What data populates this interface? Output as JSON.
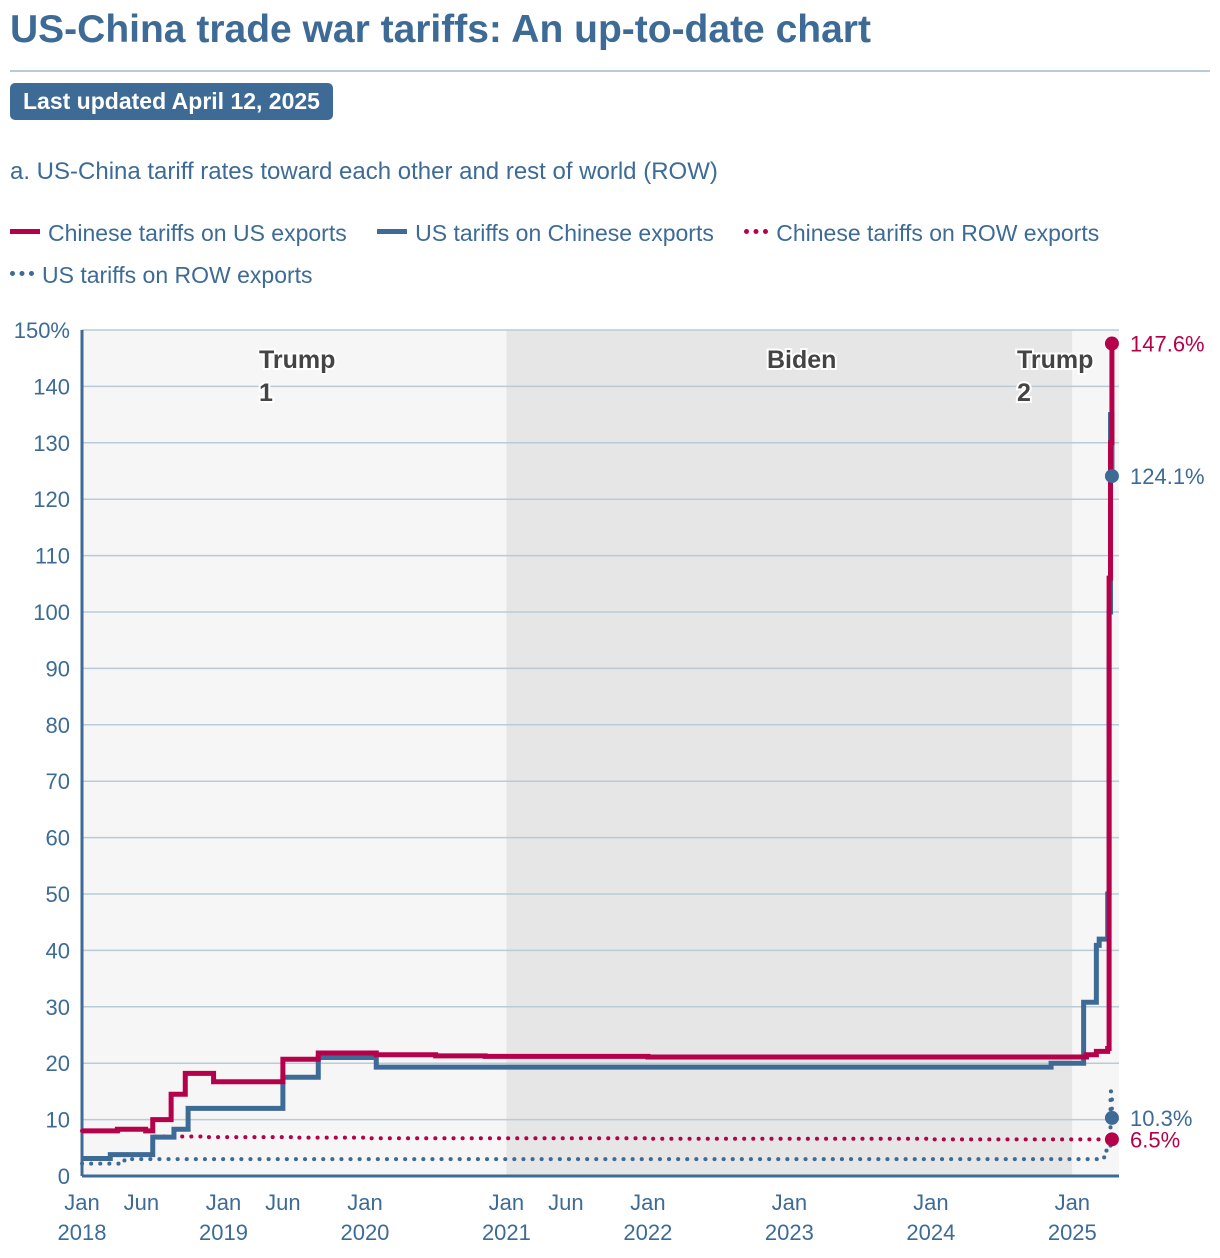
{
  "header": {
    "title": "US-China trade war tariffs: An up-to-date chart",
    "updated": "Last updated April 12, 2025",
    "subtitle": "a. US-China tariff rates toward each other and rest of world (ROW)"
  },
  "legend": {
    "items": [
      {
        "label": "Chinese tariffs on US exports",
        "style": "solid",
        "color": "#b5004a"
      },
      {
        "label": "US tariffs on Chinese exports",
        "style": "solid",
        "color": "#3d6b96"
      },
      {
        "label": "Chinese tariffs on ROW exports",
        "style": "dotted",
        "color": "#b5004a"
      },
      {
        "label": "US tariffs on ROW exports",
        "style": "dotted",
        "color": "#3d6b96"
      }
    ]
  },
  "colors": {
    "red": "#b5004a",
    "blue": "#3d6b96",
    "shade_light": "#f6f6f6",
    "shade_dark": "#e6e6e6"
  },
  "chart_data": {
    "type": "line",
    "title": "a. US-China tariff rates toward each other and rest of world (ROW)",
    "xlabel": "",
    "ylabel": "",
    "xlim": [
      2018.0,
      2025.33
    ],
    "ylim": [
      0,
      150
    ],
    "y_ticks": [
      0,
      10,
      20,
      30,
      40,
      50,
      60,
      70,
      80,
      90,
      100,
      110,
      120,
      130,
      140,
      150
    ],
    "y_tick_labels": [
      "0",
      "10",
      "20",
      "30",
      "40",
      "50",
      "60",
      "70",
      "80",
      "90",
      "100",
      "110",
      "120",
      "130",
      "140",
      "150%"
    ],
    "x_ticks": [
      {
        "x": 2018.0,
        "line1": "Jan",
        "line2": "2018"
      },
      {
        "x": 2018.42,
        "line1": "Jun",
        "line2": ""
      },
      {
        "x": 2019.0,
        "line1": "Jan",
        "line2": "2019"
      },
      {
        "x": 2019.42,
        "line1": "Jun",
        "line2": ""
      },
      {
        "x": 2020.0,
        "line1": "Jan",
        "line2": "2020"
      },
      {
        "x": 2021.0,
        "line1": "Jan",
        "line2": "2021"
      },
      {
        "x": 2021.42,
        "line1": "Jun",
        "line2": ""
      },
      {
        "x": 2022.0,
        "line1": "Jan",
        "line2": "2022"
      },
      {
        "x": 2023.0,
        "line1": "Jan",
        "line2": "2023"
      },
      {
        "x": 2024.0,
        "line1": "Jan",
        "line2": "2024"
      },
      {
        "x": 2025.0,
        "line1": "Jan",
        "line2": "2025"
      }
    ],
    "periods": [
      {
        "label": "Trump 1",
        "line1": "Trump",
        "line2": "1",
        "start": 2018.0,
        "end": 2021.0,
        "shade": "light"
      },
      {
        "label": "Biden",
        "line1": "Biden",
        "line2": "",
        "start": 2021.0,
        "end": 2025.0,
        "shade": "dark"
      },
      {
        "label": "Trump 2",
        "line1": "Trump",
        "line2": "2",
        "start": 2025.0,
        "end": 2025.33,
        "shade": "light"
      }
    ],
    "series": [
      {
        "name": "Chinese tariffs on US exports",
        "style": "solid",
        "color": "#b5004a",
        "x": [
          2018.0,
          2018.25,
          2018.45,
          2018.5,
          2018.63,
          2018.73,
          2018.93,
          2019.42,
          2019.67,
          2020.08,
          2020.5,
          2020.85,
          2021.0,
          2022.0,
          2023.0,
          2024.0,
          2025.0,
          2025.1,
          2025.17,
          2025.25,
          2025.26,
          2025.27,
          2025.28
        ],
        "values": [
          8.0,
          8.3,
          8.0,
          10.0,
          14.5,
          18.2,
          16.7,
          20.7,
          21.8,
          21.5,
          21.3,
          21.2,
          21.2,
          21.1,
          21.1,
          21.1,
          21.1,
          21.5,
          22.1,
          22.6,
          106.0,
          130.0,
          147.6
        ],
        "end_label": "147.6%"
      },
      {
        "name": "US tariffs on Chinese exports",
        "style": "solid",
        "color": "#3d6b96",
        "x": [
          2018.0,
          2018.2,
          2018.5,
          2018.65,
          2018.75,
          2019.42,
          2019.67,
          2020.08,
          2021.0,
          2022.0,
          2023.0,
          2024.0,
          2024.85,
          2025.08,
          2025.17,
          2025.19,
          2025.25,
          2025.26,
          2025.27,
          2025.28
        ],
        "values": [
          3.1,
          3.8,
          6.9,
          8.3,
          12.0,
          17.5,
          21.0,
          19.3,
          19.3,
          19.3,
          19.3,
          19.3,
          20.0,
          30.8,
          40.9,
          42.0,
          50.0,
          100.0,
          135.0,
          124.1
        ],
        "end_label": "124.1%"
      },
      {
        "name": "Chinese tariffs on ROW exports",
        "style": "dotted",
        "color": "#b5004a",
        "x": [
          2018.0,
          2018.3,
          2018.5,
          2018.85,
          2019.5,
          2020.0,
          2021.0,
          2022.0,
          2023.0,
          2024.0,
          2025.0,
          2025.28
        ],
        "values": [
          8.0,
          8.3,
          7.0,
          6.9,
          6.8,
          6.7,
          6.7,
          6.6,
          6.6,
          6.5,
          6.5,
          6.5
        ],
        "end_label": "6.5%"
      },
      {
        "name": "US tariffs on ROW exports",
        "style": "dotted",
        "color": "#3d6b96",
        "x": [
          2018.0,
          2018.3,
          2019.0,
          2020.0,
          2021.0,
          2022.0,
          2023.0,
          2024.0,
          2025.0,
          2025.18,
          2025.24,
          2025.27,
          2025.28
        ],
        "values": [
          2.2,
          3.0,
          3.0,
          3.0,
          3.0,
          3.0,
          3.0,
          3.0,
          3.0,
          3.3,
          4.5,
          15.0,
          10.3
        ],
        "end_label": "10.3%"
      }
    ]
  }
}
